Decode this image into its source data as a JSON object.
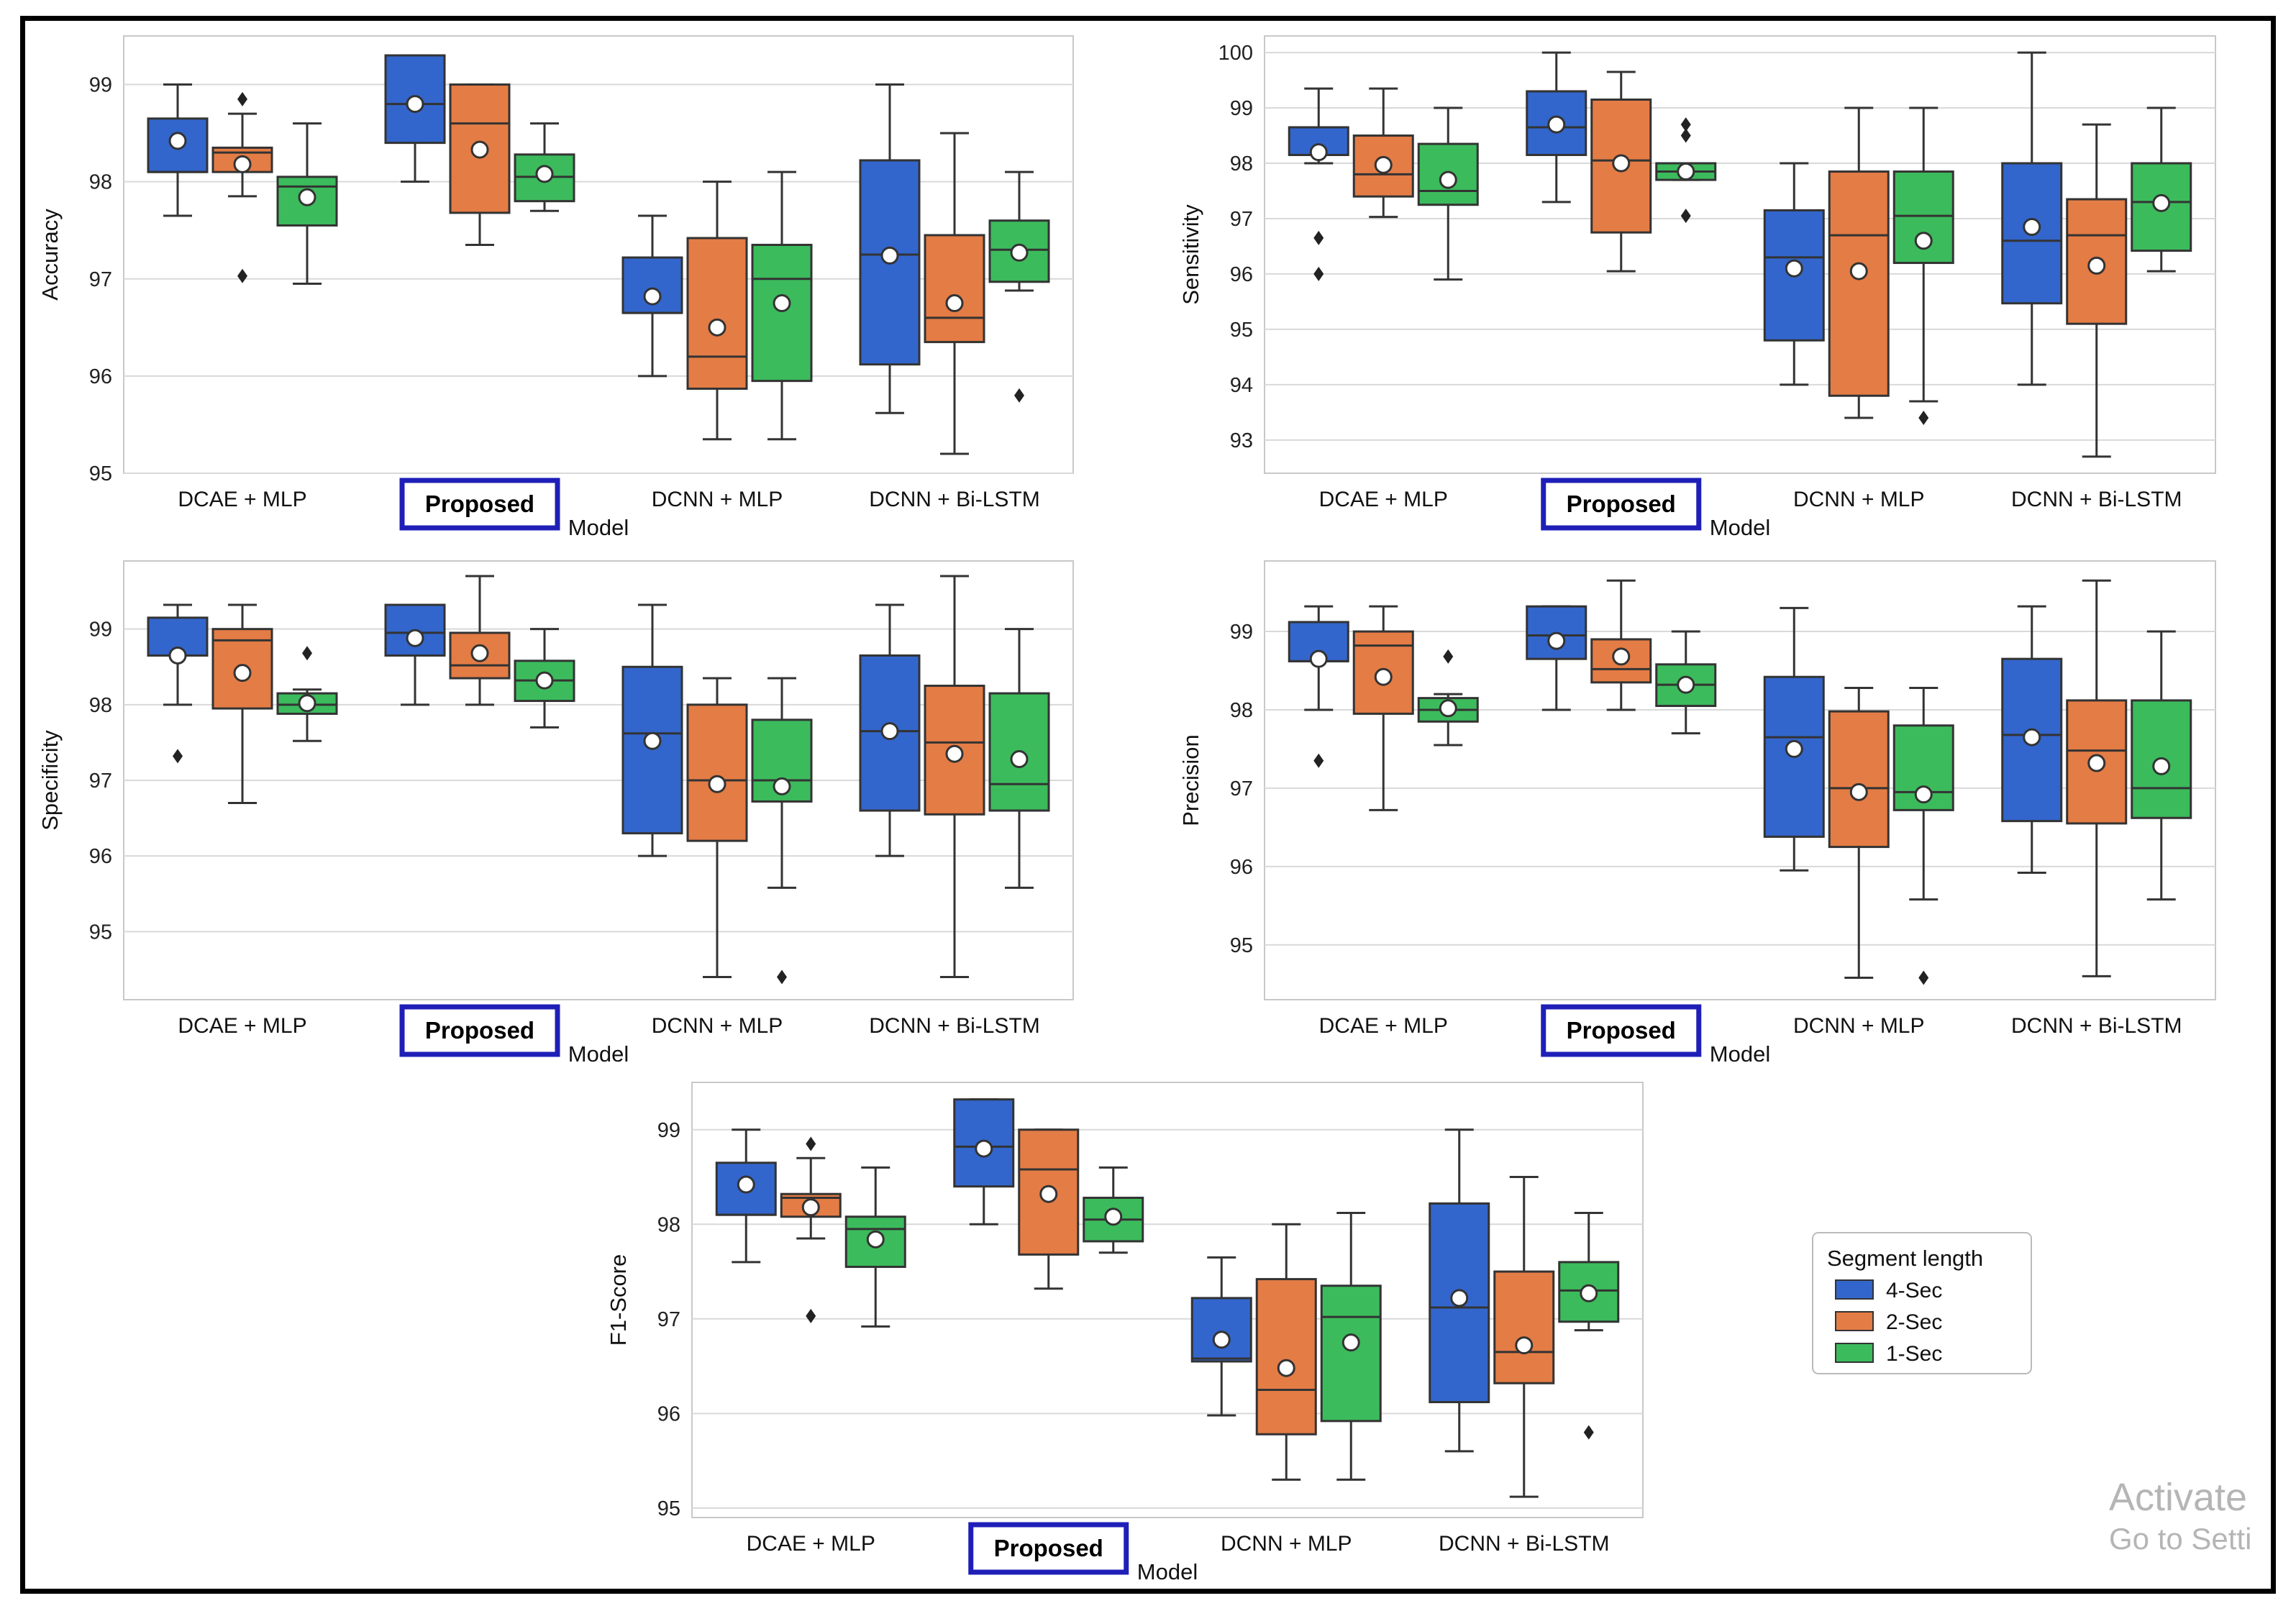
{
  "figure": {
    "legend": {
      "title": "Segment length",
      "entries": [
        {
          "name": "4-Sec",
          "color": "#3366cc"
        },
        {
          "name": "2-Sec",
          "color": "#e47c45"
        },
        {
          "name": "1-Sec",
          "color": "#3cbb5c"
        }
      ]
    },
    "highlight_label": "Proposed",
    "watermark": {
      "line1": "Activate",
      "line2": "Go to Setti"
    }
  },
  "chart_data": [
    {
      "type": "box",
      "title": "",
      "xlabel": "Model",
      "ylabel": "Accuracy",
      "categories": [
        "DCAE + MLP",
        "Proposed",
        "DCNN + MLP",
        "DCNN + Bi-LSTM"
      ],
      "ylim": [
        95,
        99.5
      ],
      "yticks": [
        95,
        96,
        97,
        98,
        99
      ],
      "grid": true,
      "series": [
        {
          "name": "4-Sec",
          "boxes": [
            {
              "q1": 98.1,
              "median": 98.1,
              "q3": 98.65,
              "whislo": 97.65,
              "whishi": 99.0,
              "mean": 98.42,
              "fliers": []
            },
            {
              "q1": 98.4,
              "median": 98.8,
              "q3": 99.3,
              "whislo": 98.0,
              "whishi": 99.3,
              "mean": 98.8,
              "fliers": []
            },
            {
              "q1": 96.65,
              "median": 96.65,
              "q3": 97.22,
              "whislo": 96.0,
              "whishi": 97.65,
              "mean": 96.82,
              "fliers": []
            },
            {
              "q1": 96.12,
              "median": 97.25,
              "q3": 98.22,
              "whislo": 95.62,
              "whishi": 99.0,
              "mean": 97.24,
              "fliers": []
            }
          ]
        },
        {
          "name": "2-Sec",
          "boxes": [
            {
              "q1": 98.1,
              "median": 98.3,
              "q3": 98.35,
              "whislo": 97.85,
              "whishi": 98.7,
              "mean": 98.18,
              "fliers": [
                98.85,
                97.03
              ]
            },
            {
              "q1": 97.68,
              "median": 98.6,
              "q3": 99.0,
              "whislo": 97.35,
              "whishi": 99.0,
              "mean": 98.33,
              "fliers": []
            },
            {
              "q1": 95.87,
              "median": 96.2,
              "q3": 97.42,
              "whislo": 95.35,
              "whishi": 98.0,
              "mean": 96.5,
              "fliers": []
            },
            {
              "q1": 96.35,
              "median": 96.6,
              "q3": 97.45,
              "whislo": 95.2,
              "whishi": 98.5,
              "mean": 96.75,
              "fliers": []
            }
          ]
        },
        {
          "name": "1-Sec",
          "boxes": [
            {
              "q1": 97.55,
              "median": 97.95,
              "q3": 98.05,
              "whislo": 96.95,
              "whishi": 98.6,
              "mean": 97.84,
              "fliers": []
            },
            {
              "q1": 97.8,
              "median": 98.05,
              "q3": 98.28,
              "whislo": 97.7,
              "whishi": 98.6,
              "mean": 98.08,
              "fliers": []
            },
            {
              "q1": 95.95,
              "median": 97.0,
              "q3": 97.35,
              "whislo": 95.35,
              "whishi": 98.1,
              "mean": 96.75,
              "fliers": []
            },
            {
              "q1": 96.97,
              "median": 97.3,
              "q3": 97.6,
              "whislo": 96.88,
              "whishi": 98.1,
              "mean": 97.27,
              "fliers": [
                95.8
              ]
            }
          ]
        }
      ]
    },
    {
      "type": "box",
      "title": "",
      "xlabel": "Model",
      "ylabel": "Sensitivity",
      "categories": [
        "DCAE + MLP",
        "Proposed",
        "DCNN + MLP",
        "DCNN + Bi-LSTM"
      ],
      "ylim": [
        92.4,
        100.3
      ],
      "yticks": [
        93,
        94,
        95,
        96,
        97,
        98,
        99,
        100
      ],
      "grid": true,
      "series": [
        {
          "name": "4-Sec",
          "boxes": [
            {
              "q1": 98.15,
              "median": 98.15,
              "q3": 98.65,
              "whislo": 98.0,
              "whishi": 99.35,
              "mean": 98.2,
              "fliers": [
                96.65,
                96.0
              ]
            },
            {
              "q1": 98.15,
              "median": 98.65,
              "q3": 99.3,
              "whislo": 97.3,
              "whishi": 100.0,
              "mean": 98.7,
              "fliers": []
            },
            {
              "q1": 94.8,
              "median": 96.3,
              "q3": 97.15,
              "whislo": 94.0,
              "whishi": 98.0,
              "mean": 96.1,
              "fliers": []
            },
            {
              "q1": 95.47,
              "median": 96.6,
              "q3": 98.0,
              "whislo": 94.0,
              "whishi": 100.0,
              "mean": 96.85,
              "fliers": []
            }
          ]
        },
        {
          "name": "2-Sec",
          "boxes": [
            {
              "q1": 97.4,
              "median": 97.8,
              "q3": 98.5,
              "whislo": 97.03,
              "whishi": 99.35,
              "mean": 97.97,
              "fliers": []
            },
            {
              "q1": 96.75,
              "median": 98.05,
              "q3": 99.15,
              "whislo": 96.05,
              "whishi": 99.65,
              "mean": 98.0,
              "fliers": []
            },
            {
              "q1": 93.8,
              "median": 96.7,
              "q3": 97.85,
              "whislo": 93.4,
              "whishi": 99.0,
              "mean": 96.05,
              "fliers": []
            },
            {
              "q1": 95.1,
              "median": 96.7,
              "q3": 97.35,
              "whislo": 92.7,
              "whishi": 98.7,
              "mean": 96.15,
              "fliers": []
            }
          ]
        },
        {
          "name": "1-Sec",
          "boxes": [
            {
              "q1": 97.25,
              "median": 97.5,
              "q3": 98.35,
              "whislo": 95.9,
              "whishi": 99.0,
              "mean": 97.7,
              "fliers": []
            },
            {
              "q1": 97.7,
              "median": 97.85,
              "q3": 98.0,
              "whislo": 97.7,
              "whishi": 98.0,
              "mean": 97.85,
              "fliers": [
                98.7,
                98.5,
                97.05
              ]
            },
            {
              "q1": 96.2,
              "median": 97.05,
              "q3": 97.85,
              "whislo": 93.7,
              "whishi": 99.0,
              "mean": 96.6,
              "fliers": [
                93.4
              ]
            },
            {
              "q1": 96.42,
              "median": 97.3,
              "q3": 98.0,
              "whislo": 96.05,
              "whishi": 99.0,
              "mean": 97.28,
              "fliers": []
            }
          ]
        }
      ]
    },
    {
      "type": "box",
      "title": "",
      "xlabel": "Model",
      "ylabel": "Specificity",
      "categories": [
        "DCAE + MLP",
        "Proposed",
        "DCNN + MLP",
        "DCNN + Bi-LSTM"
      ],
      "ylim": [
        94.1,
        99.9
      ],
      "yticks": [
        95,
        96,
        97,
        98,
        99
      ],
      "grid": true,
      "series": [
        {
          "name": "4-Sec",
          "boxes": [
            {
              "q1": 98.65,
              "median": 98.65,
              "q3": 99.15,
              "whislo": 98.0,
              "whishi": 99.32,
              "mean": 98.65,
              "fliers": [
                97.32
              ]
            },
            {
              "q1": 98.65,
              "median": 98.95,
              "q3": 99.32,
              "whislo": 98.0,
              "whishi": 99.32,
              "mean": 98.88,
              "fliers": []
            },
            {
              "q1": 96.3,
              "median": 97.62,
              "q3": 98.5,
              "whislo": 96.0,
              "whishi": 99.32,
              "mean": 97.52,
              "fliers": []
            },
            {
              "q1": 96.6,
              "median": 97.65,
              "q3": 98.65,
              "whislo": 96.0,
              "whishi": 99.32,
              "mean": 97.65,
              "fliers": []
            }
          ]
        },
        {
          "name": "2-Sec",
          "boxes": [
            {
              "q1": 97.95,
              "median": 98.85,
              "q3": 99.0,
              "whislo": 96.7,
              "whishi": 99.32,
              "mean": 98.42,
              "fliers": []
            },
            {
              "q1": 98.35,
              "median": 98.52,
              "q3": 98.95,
              "whislo": 98.0,
              "whishi": 99.7,
              "mean": 98.68,
              "fliers": []
            },
            {
              "q1": 96.2,
              "median": 97.0,
              "q3": 98.0,
              "whislo": 94.4,
              "whishi": 98.35,
              "mean": 96.95,
              "fliers": []
            },
            {
              "q1": 96.55,
              "median": 97.5,
              "q3": 98.25,
              "whislo": 94.4,
              "whishi": 99.7,
              "mean": 97.35,
              "fliers": []
            }
          ]
        },
        {
          "name": "1-Sec",
          "boxes": [
            {
              "q1": 97.88,
              "median": 98.0,
              "q3": 98.15,
              "whislo": 97.52,
              "whishi": 98.2,
              "mean": 98.02,
              "fliers": [
                98.68
              ]
            },
            {
              "q1": 98.05,
              "median": 98.32,
              "q3": 98.58,
              "whislo": 97.7,
              "whishi": 99.0,
              "mean": 98.32,
              "fliers": []
            },
            {
              "q1": 96.72,
              "median": 97.0,
              "q3": 97.8,
              "whislo": 95.58,
              "whishi": 98.35,
              "mean": 96.92,
              "fliers": [
                94.4
              ]
            },
            {
              "q1": 96.6,
              "median": 96.95,
              "q3": 98.15,
              "whislo": 95.58,
              "whishi": 99.0,
              "mean": 97.28,
              "fliers": []
            }
          ]
        }
      ]
    },
    {
      "type": "box",
      "title": "",
      "xlabel": "Model",
      "ylabel": "Precision",
      "categories": [
        "DCAE + MLP",
        "Proposed",
        "DCNN + MLP",
        "DCNN + Bi-LSTM"
      ],
      "ylim": [
        94.3,
        99.9
      ],
      "yticks": [
        95,
        96,
        97,
        98,
        99
      ],
      "grid": true,
      "series": [
        {
          "name": "4-Sec",
          "boxes": [
            {
              "q1": 98.62,
              "median": 98.62,
              "q3": 99.12,
              "whislo": 98.0,
              "whishi": 99.32,
              "mean": 98.65,
              "fliers": [
                97.35
              ]
            },
            {
              "q1": 98.65,
              "median": 98.95,
              "q3": 99.32,
              "whislo": 98.0,
              "whishi": 99.32,
              "mean": 98.88,
              "fliers": []
            },
            {
              "q1": 96.38,
              "median": 97.65,
              "q3": 98.42,
              "whislo": 95.95,
              "whishi": 99.3,
              "mean": 97.5,
              "fliers": []
            },
            {
              "q1": 96.58,
              "median": 97.68,
              "q3": 98.65,
              "whislo": 95.92,
              "whishi": 99.32,
              "mean": 97.65,
              "fliers": []
            }
          ]
        },
        {
          "name": "2-Sec",
          "boxes": [
            {
              "q1": 97.95,
              "median": 98.82,
              "q3": 99.0,
              "whislo": 96.72,
              "whishi": 99.32,
              "mean": 98.42,
              "fliers": []
            },
            {
              "q1": 98.35,
              "median": 98.52,
              "q3": 98.9,
              "whislo": 98.0,
              "whishi": 99.65,
              "mean": 98.68,
              "fliers": []
            },
            {
              "q1": 96.25,
              "median": 97.0,
              "q3": 97.98,
              "whislo": 94.58,
              "whishi": 98.28,
              "mean": 96.95,
              "fliers": []
            },
            {
              "q1": 96.55,
              "median": 97.48,
              "q3": 98.12,
              "whislo": 94.6,
              "whishi": 99.65,
              "mean": 97.32,
              "fliers": []
            }
          ]
        },
        {
          "name": "1-Sec",
          "boxes": [
            {
              "q1": 97.85,
              "median": 98.0,
              "q3": 98.15,
              "whislo": 97.55,
              "whishi": 98.2,
              "mean": 98.02,
              "fliers": [
                98.68
              ]
            },
            {
              "q1": 98.05,
              "median": 98.32,
              "q3": 98.58,
              "whislo": 97.7,
              "whishi": 99.0,
              "mean": 98.32,
              "fliers": []
            },
            {
              "q1": 96.72,
              "median": 96.95,
              "q3": 97.8,
              "whislo": 95.58,
              "whishi": 98.28,
              "mean": 96.92,
              "fliers": [
                94.58
              ]
            },
            {
              "q1": 96.62,
              "median": 97.0,
              "q3": 98.12,
              "whislo": 95.58,
              "whishi": 99.0,
              "mean": 97.28,
              "fliers": []
            }
          ]
        }
      ]
    },
    {
      "type": "box",
      "title": "",
      "xlabel": "Model",
      "ylabel": "F1-Score",
      "categories": [
        "DCAE + MLP",
        "Proposed",
        "DCNN + MLP",
        "DCNN + Bi-LSTM"
      ],
      "ylim": [
        94.9,
        99.5
      ],
      "yticks": [
        95,
        96,
        97,
        98,
        99
      ],
      "grid": true,
      "series": [
        {
          "name": "4-Sec",
          "boxes": [
            {
              "q1": 98.1,
              "median": 98.1,
              "q3": 98.65,
              "whislo": 97.6,
              "whishi": 99.0,
              "mean": 98.42,
              "fliers": []
            },
            {
              "q1": 98.4,
              "median": 98.82,
              "q3": 99.32,
              "whislo": 98.0,
              "whishi": 99.32,
              "mean": 98.8,
              "fliers": []
            },
            {
              "q1": 96.55,
              "median": 96.58,
              "q3": 97.22,
              "whislo": 95.98,
              "whishi": 97.65,
              "mean": 96.78,
              "fliers": []
            },
            {
              "q1": 96.12,
              "median": 97.12,
              "q3": 98.22,
              "whislo": 95.6,
              "whishi": 99.0,
              "mean": 97.22,
              "fliers": []
            }
          ]
        },
        {
          "name": "2-Sec",
          "boxes": [
            {
              "q1": 98.08,
              "median": 98.28,
              "q3": 98.32,
              "whislo": 97.85,
              "whishi": 98.7,
              "mean": 98.18,
              "fliers": [
                98.85,
                97.03
              ]
            },
            {
              "q1": 97.68,
              "median": 98.58,
              "q3": 99.0,
              "whislo": 97.32,
              "whishi": 99.0,
              "mean": 98.32,
              "fliers": []
            },
            {
              "q1": 95.78,
              "median": 96.25,
              "q3": 97.42,
              "whislo": 95.3,
              "whishi": 98.0,
              "mean": 96.48,
              "fliers": []
            },
            {
              "q1": 96.32,
              "median": 96.65,
              "q3": 97.5,
              "whislo": 95.12,
              "whishi": 98.5,
              "mean": 96.72,
              "fliers": []
            }
          ]
        },
        {
          "name": "1-Sec",
          "boxes": [
            {
              "q1": 97.55,
              "median": 97.95,
              "q3": 98.08,
              "whislo": 96.92,
              "whishi": 98.6,
              "mean": 97.84,
              "fliers": []
            },
            {
              "q1": 97.82,
              "median": 98.05,
              "q3": 98.28,
              "whislo": 97.7,
              "whishi": 98.6,
              "mean": 98.08,
              "fliers": []
            },
            {
              "q1": 95.92,
              "median": 97.02,
              "q3": 97.35,
              "whislo": 95.3,
              "whishi": 98.12,
              "mean": 96.75,
              "fliers": []
            },
            {
              "q1": 96.97,
              "median": 97.3,
              "q3": 97.6,
              "whislo": 96.88,
              "whishi": 98.12,
              "mean": 97.27,
              "fliers": [
                95.8
              ]
            }
          ]
        }
      ]
    }
  ]
}
